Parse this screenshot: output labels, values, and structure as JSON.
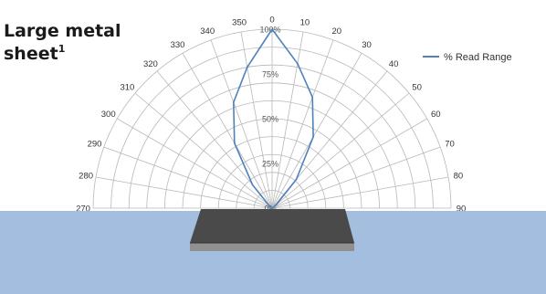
{
  "title": {
    "main": "Large metal",
    "line2": "sheet",
    "footnote": "1"
  },
  "chart_data": {
    "type": "polar-line",
    "angle_ticks": [
      270,
      280,
      290,
      300,
      310,
      320,
      330,
      340,
      350,
      0,
      10,
      20,
      30,
      40,
      50,
      60,
      70,
      80,
      90
    ],
    "radial_ticks": [
      "0%",
      "25%",
      "50%",
      "75%",
      "100%"
    ],
    "rmax": 100,
    "series": [
      {
        "name": "% Read Range",
        "color": "#4f81bd",
        "points": [
          {
            "angle": 270,
            "value": 0
          },
          {
            "angle": 280,
            "value": 0
          },
          {
            "angle": 290,
            "value": 0
          },
          {
            "angle": 300,
            "value": 0
          },
          {
            "angle": 310,
            "value": 2
          },
          {
            "angle": 320,
            "value": 17
          },
          {
            "angle": 330,
            "value": 42
          },
          {
            "angle": 340,
            "value": 63
          },
          {
            "angle": 350,
            "value": 80
          },
          {
            "angle": 0,
            "value": 100
          },
          {
            "angle": 10,
            "value": 82
          },
          {
            "angle": 20,
            "value": 66
          },
          {
            "angle": 30,
            "value": 46
          },
          {
            "angle": 40,
            "value": 21
          },
          {
            "angle": 50,
            "value": 3
          },
          {
            "angle": 60,
            "value": 0
          },
          {
            "angle": 70,
            "value": 0
          },
          {
            "angle": 80,
            "value": 0
          },
          {
            "angle": 90,
            "value": 0
          }
        ]
      }
    ],
    "legend": "top-right"
  },
  "colors": {
    "surface": "#a4bee0",
    "sheet_top": "#4a4a4a",
    "sheet_side": "#909090",
    "grid": "#b8b8b8"
  }
}
